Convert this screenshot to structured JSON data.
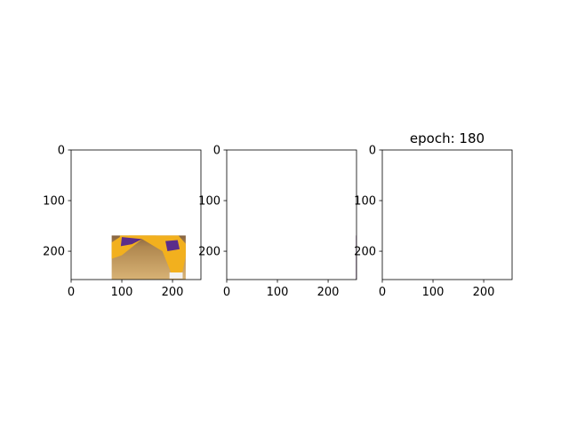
{
  "figure": {
    "colors": {
      "background": "#ffffff",
      "mask_background": "#440154",
      "mask_person": "#fde725",
      "mask_ball": "#21918c",
      "axis": "#000000"
    }
  },
  "chart_data": [
    {
      "type": "image",
      "title": "",
      "content": "photo",
      "xlim": [
        0,
        256
      ],
      "ylim": [
        256,
        0
      ],
      "xticks": [
        0,
        100,
        200
      ],
      "yticks": [
        0,
        100,
        200
      ],
      "xtick_labels": [
        "0",
        "100",
        "200"
      ],
      "ytick_labels": [
        "0",
        "100",
        "200"
      ]
    },
    {
      "type": "image",
      "title": "",
      "content": "segmentation-mask",
      "xlim": [
        0,
        256
      ],
      "ylim": [
        256,
        0
      ],
      "xticks": [
        0,
        100,
        200
      ],
      "yticks": [
        0,
        100,
        200
      ],
      "xtick_labels": [
        "0",
        "100",
        "200"
      ],
      "ytick_labels": [
        "0",
        "100",
        "200"
      ]
    },
    {
      "type": "image",
      "title": "epoch: 180",
      "content": "predicted-mask",
      "xlim": [
        0,
        256
      ],
      "ylim": [
        256,
        0
      ],
      "xticks": [
        0,
        100,
        200
      ],
      "yticks": [
        0,
        100,
        200
      ],
      "xtick_labels": [
        "0",
        "100",
        "200"
      ],
      "ytick_labels": [
        "0",
        "100",
        "200"
      ]
    }
  ]
}
